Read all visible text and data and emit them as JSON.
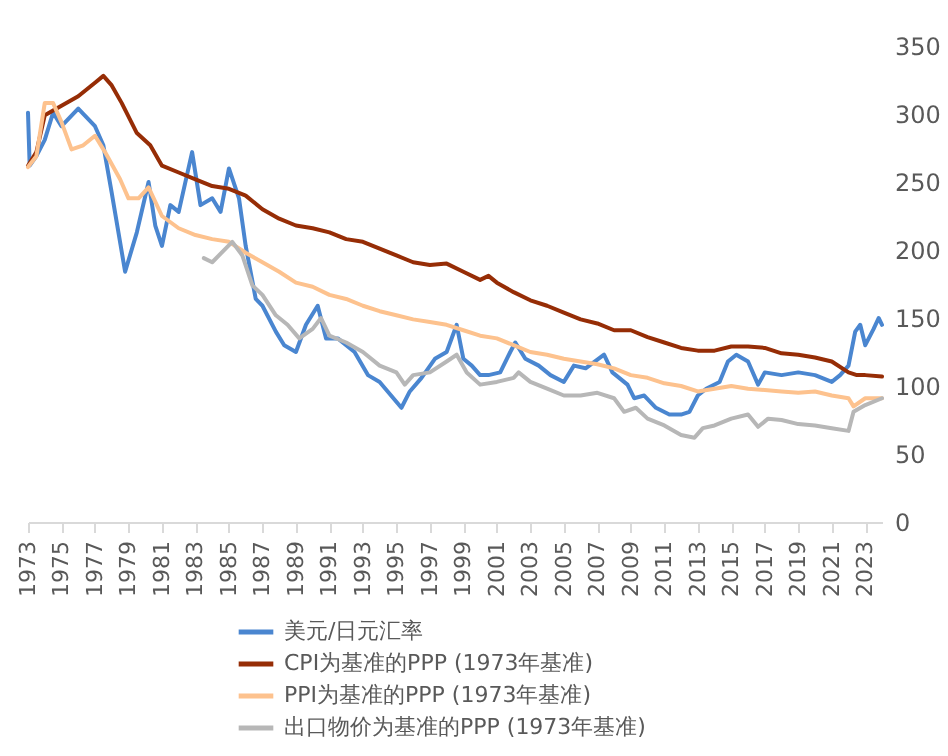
{
  "chart_data": {
    "type": "line",
    "xlim": [
      1973,
      2024
    ],
    "xticks": [
      1973,
      1975,
      1977,
      1979,
      1981,
      1983,
      1985,
      1987,
      1989,
      1991,
      1993,
      1995,
      1997,
      1999,
      2001,
      2003,
      2005,
      2007,
      2009,
      2011,
      2013,
      2015,
      2017,
      2019,
      2021,
      2023
    ],
    "ylim": [
      0,
      350
    ],
    "yticks": [
      0,
      50,
      100,
      150,
      200,
      250,
      300,
      350
    ],
    "grid": false,
    "legend": "bottom",
    "line_style": "solid",
    "marker": "none",
    "series": [
      {
        "name": "美元/日元汇率",
        "color": "#4a86d0",
        "x": [
          1973,
          1973.1,
          1973.5,
          1974,
          1974.5,
          1975,
          1976,
          1977,
          1977.5,
          1978,
          1978.8,
          1979.5,
          1980.2,
          1980.6,
          1981,
          1981.5,
          1982,
          1982.8,
          1983.3,
          1984,
          1984.5,
          1985,
          1985.6,
          1986,
          1986.6,
          1987,
          1987.8,
          1988.3,
          1989,
          1989.6,
          1990.3,
          1990.8,
          1991.5,
          1992.5,
          1993.3,
          1994,
          1995.3,
          1995.8,
          1996.5,
          1997.3,
          1998,
          1998.6,
          1999,
          1999.5,
          2000,
          2000.5,
          2001.2,
          2001.8,
          2002.1,
          2002.7,
          2003.5,
          2004.2,
          2005,
          2005.6,
          2006.3,
          2007.4,
          2007.9,
          2008.8,
          2009.2,
          2009.8,
          2010.5,
          2011.3,
          2012,
          2012.5,
          2013,
          2013.5,
          2014.3,
          2014.8,
          2015.3,
          2016,
          2016.6,
          2017,
          2018,
          2019,
          2020,
          2021,
          2021.5,
          2022,
          2022.4,
          2022.7,
          2023,
          2023.5,
          2023.8,
          2024
        ],
        "values": [
          301,
          262,
          269,
          281,
          301,
          291,
          304,
          291,
          277,
          242,
          184,
          213,
          250,
          218,
          203,
          233,
          228,
          272,
          233,
          238,
          228,
          260,
          238,
          203,
          164,
          159,
          140,
          130,
          125,
          145,
          159,
          135,
          135,
          125,
          108,
          103,
          84,
          96,
          106,
          120,
          125,
          145,
          120,
          115,
          108,
          108,
          110,
          125,
          132,
          120,
          115,
          108,
          103,
          115,
          113,
          123,
          110,
          101,
          91,
          93,
          84,
          79,
          79,
          81,
          93,
          98,
          103,
          118,
          123,
          118,
          101,
          110,
          108,
          110,
          108,
          103,
          108,
          115,
          140,
          145,
          130,
          142,
          150,
          145
        ]
      },
      {
        "name": "CPI为基准的PPP (1973年基准)",
        "color": "#962d06",
        "x": [
          1973,
          1973.5,
          1974,
          1975,
          1976,
          1977,
          1977.5,
          1978,
          1978.6,
          1979.5,
          1980.3,
          1981,
          1982,
          1983,
          1984,
          1985,
          1986,
          1987,
          1988,
          1989,
          1990,
          1991,
          1992,
          1993,
          1994,
          1995,
          1996,
          1997,
          1998,
          1999,
          2000,
          2000.5,
          2001,
          2002,
          2003,
          2004,
          2005,
          2006,
          2007,
          2008,
          2009,
          2010,
          2011,
          2012,
          2013,
          2014,
          2015,
          2016,
          2017,
          2018,
          2019,
          2020,
          2021,
          2022,
          2022.5,
          2023,
          2024
        ],
        "values": [
          262,
          272,
          299,
          306,
          313,
          323,
          328,
          321,
          308,
          286,
          277,
          262,
          257,
          252,
          247,
          245,
          240,
          230,
          223,
          218,
          216,
          213,
          208,
          206,
          201,
          196,
          191,
          189,
          190,
          184,
          178,
          181,
          176,
          169,
          163,
          159,
          154,
          149,
          146,
          141,
          141,
          136,
          132,
          128,
          126,
          126,
          129,
          129,
          128,
          124,
          123,
          121,
          118,
          110,
          108,
          108,
          107
        ]
      },
      {
        "name": "PPI为基准的PPP (1973年基准)",
        "color": "#fdc28e",
        "x": [
          1973,
          1973.5,
          1974,
          1974.5,
          1975,
          1975.6,
          1976.3,
          1977,
          1977.6,
          1978.5,
          1979,
          1979.6,
          1980.2,
          1981,
          1982,
          1983,
          1984,
          1985,
          1986,
          1987,
          1988,
          1989,
          1990,
          1991,
          1992,
          1993,
          1994,
          1995,
          1996,
          1997,
          1998,
          1999,
          2000,
          2001,
          2002,
          2003,
          2004,
          2005,
          2006,
          2007,
          2008,
          2009,
          2010,
          2011,
          2012,
          2013,
          2014,
          2015,
          2016,
          2017,
          2018,
          2019,
          2020,
          2021,
          2022,
          2022.3,
          2023,
          2024
        ],
        "values": [
          261,
          269,
          308,
          308,
          294,
          274,
          277,
          284,
          272,
          252,
          238,
          238,
          246,
          225,
          216,
          211,
          208,
          206,
          198,
          191,
          184,
          176,
          173,
          167,
          164,
          159,
          155,
          152,
          149,
          147,
          145,
          141,
          137,
          135,
          130,
          125,
          123,
          120,
          118,
          116,
          113,
          108,
          106,
          102,
          100,
          96,
          98,
          100,
          98,
          97,
          96,
          95,
          96,
          93,
          91,
          85,
          91,
          91
        ]
      },
      {
        "name": "出口物价为基准的PPP (1973年基准)",
        "color": "#b7b7b7",
        "x": [
          1983.5,
          1984,
          1984.8,
          1985.2,
          1985.8,
          1986.4,
          1987,
          1987.8,
          1988.5,
          1989.2,
          1990,
          1990.5,
          1991,
          1992,
          1993,
          1994,
          1995,
          1995.5,
          1996,
          1997,
          1998,
          1998.6,
          1999.2,
          2000,
          2001,
          2002,
          2002.3,
          2003,
          2004,
          2005,
          2006,
          2007,
          2008,
          2008.6,
          2009.3,
          2010,
          2011,
          2012,
          2012.8,
          2013.3,
          2014,
          2015,
          2016,
          2016.6,
          2017.2,
          2018,
          2019,
          2020,
          2021,
          2022,
          2022.3,
          2023,
          2024
        ],
        "values": [
          194,
          191,
          201,
          206,
          196,
          174,
          167,
          152,
          145,
          135,
          142,
          150,
          137,
          132,
          125,
          115,
          110,
          101,
          108,
          110,
          118,
          123,
          110,
          101,
          103,
          106,
          110,
          103,
          98,
          93,
          93,
          95,
          91,
          81,
          84,
          76,
          71,
          64,
          62,
          69,
          71,
          76,
          79,
          70,
          76,
          75,
          72,
          71,
          69,
          67,
          81,
          86,
          91
        ]
      }
    ]
  }
}
